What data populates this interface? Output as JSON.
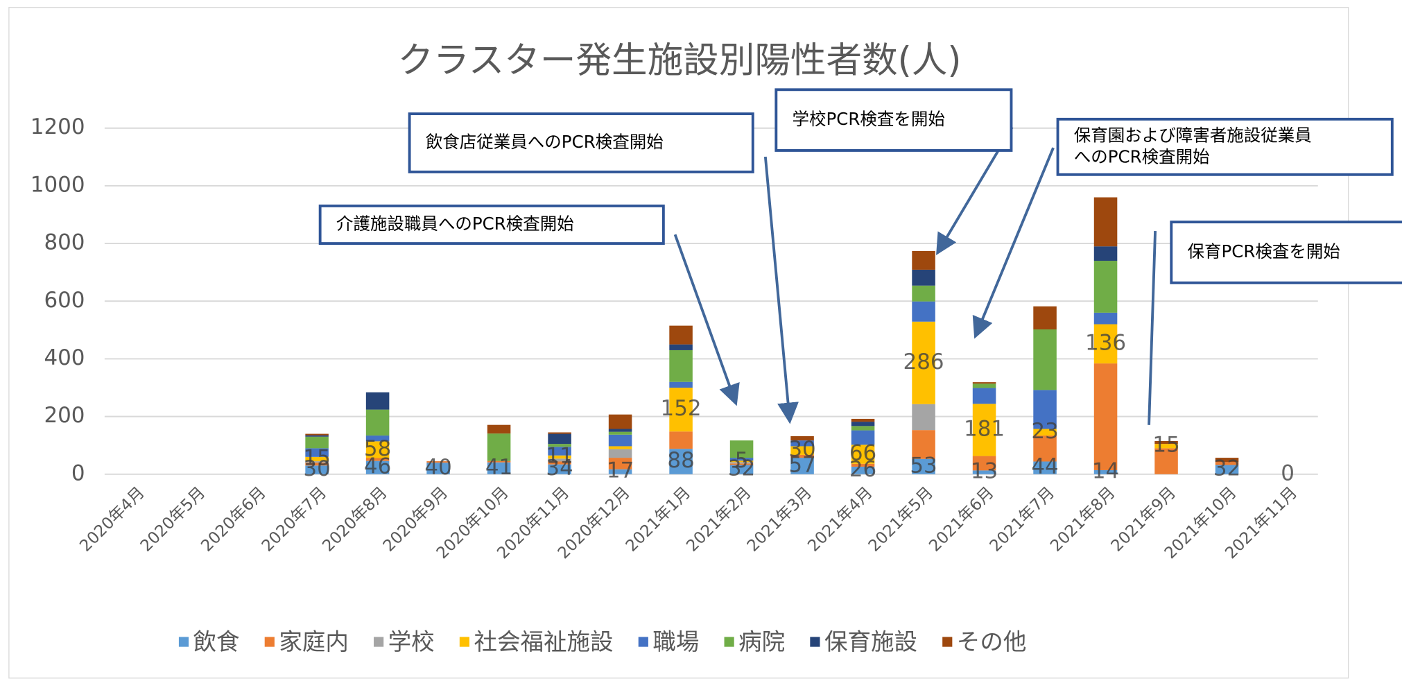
{
  "chart_data": {
    "type": "stacked_bar",
    "title": "クラスター発生施設別陽性者数(人)",
    "categories": [
      "2020年4月",
      "2020年5月",
      "2020年6月",
      "2020年7月",
      "2020年8月",
      "2020年9月",
      "2020年10月",
      "2020年11月",
      "2020年12月",
      "2021年1月",
      "2021年2月",
      "2021年3月",
      "2021年4月",
      "2021年5月",
      "2021年6月",
      "2021年7月",
      "2021年8月",
      "2021年9月",
      "2021年10月",
      "2021年11月"
    ],
    "series": [
      {
        "name": "飲食",
        "color": "#5b9bd5",
        "values": [
          0,
          0,
          0,
          30,
          46,
          40,
          41,
          34,
          17,
          88,
          32,
          57,
          26,
          53,
          13,
          44,
          14,
          0,
          32,
          0
        ],
        "value_labels": [
          null,
          null,
          null,
          "30",
          "46",
          "40",
          "41",
          "34",
          "17",
          "88",
          "32",
          "57",
          "26",
          "53",
          "13",
          "44",
          "14",
          null,
          "32",
          "0"
        ]
      },
      {
        "name": "家庭内",
        "color": "#ed7d31",
        "values": [
          0,
          0,
          0,
          10,
          10,
          5,
          5,
          10,
          40,
          60,
          5,
          10,
          10,
          100,
          50,
          90,
          370,
          90,
          10,
          0
        ]
      },
      {
        "name": "学校",
        "color": "#a5a5a5",
        "values": [
          0,
          0,
          0,
          5,
          0,
          0,
          0,
          10,
          30,
          0,
          5,
          0,
          0,
          90,
          0,
          0,
          0,
          0,
          0,
          0
        ]
      },
      {
        "name": "社会福祉施設",
        "color": "#ffc000",
        "values": [
          0,
          0,
          0,
          15,
          58,
          0,
          0,
          11,
          10,
          152,
          5,
          30,
          66,
          286,
          181,
          23,
          136,
          15,
          0,
          0
        ],
        "value_labels": [
          null,
          null,
          null,
          "15",
          "58",
          null,
          null,
          "11",
          null,
          "152",
          "5",
          "30",
          "66",
          "286",
          "181",
          "23",
          "136",
          "15",
          null,
          null
        ]
      },
      {
        "name": "職場",
        "color": "#4472c4",
        "values": [
          0,
          0,
          0,
          30,
          20,
          0,
          0,
          30,
          40,
          20,
          10,
          20,
          50,
          70,
          55,
          135,
          40,
          0,
          0,
          0
        ]
      },
      {
        "name": "病院",
        "color": "#70ad47",
        "values": [
          0,
          0,
          0,
          40,
          90,
          0,
          95,
          10,
          10,
          110,
          60,
          0,
          15,
          55,
          15,
          210,
          180,
          0,
          0,
          0
        ]
      },
      {
        "name": "保育施設",
        "color": "#264478",
        "values": [
          0,
          0,
          0,
          5,
          60,
          0,
          0,
          35,
          10,
          20,
          0,
          0,
          15,
          55,
          0,
          0,
          50,
          0,
          0,
          0
        ]
      },
      {
        "name": "その他",
        "color": "#9e480e",
        "values": [
          0,
          0,
          0,
          5,
          0,
          0,
          30,
          5,
          50,
          65,
          0,
          15,
          10,
          65,
          5,
          80,
          170,
          10,
          15,
          0
        ]
      }
    ],
    "ylim": [
      0,
      1200
    ],
    "yticks": [
      0,
      200,
      400,
      600,
      800,
      1000,
      1200
    ],
    "grid": true,
    "legend": "bottom",
    "annotations": [
      {
        "lines": [
          "飲食店従業員へのPCR検査開始"
        ]
      },
      {
        "lines": [
          "学校PCR検査を開始"
        ]
      },
      {
        "lines": [
          "保育園および障害者施設従業員",
          "へのPCR検査開始"
        ]
      },
      {
        "lines": [
          "介護施設職員へのPCR検査開始"
        ]
      },
      {
        "lines": [
          "保育PCR検査を開始"
        ]
      }
    ]
  }
}
